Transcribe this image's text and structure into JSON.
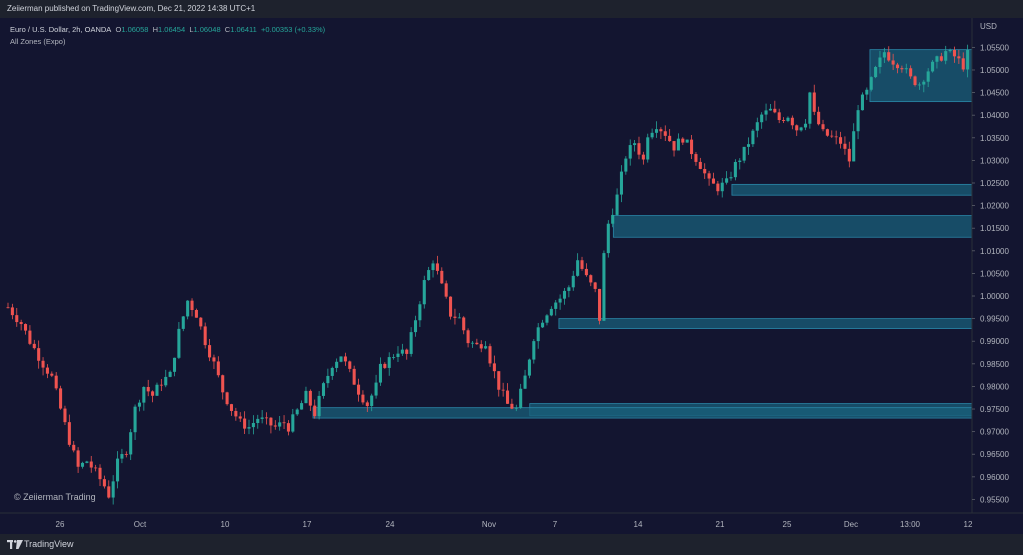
{
  "header": {
    "published": "Zeiierman published on TradingView.com, Dec 21, 2022 14:38 UTC+1"
  },
  "legend": {
    "symbol": "Euro / U.S. Dollar, 2h, OANDA",
    "o_label": "O",
    "o_value": "1.06058",
    "h_label": "H",
    "h_value": "1.06454",
    "l_label": "L",
    "l_value": "1.06048",
    "c_label": "C",
    "c_value": "1.06411",
    "change": "+0.00353 (+0.33%)",
    "indicator": "All Zones (Expo)"
  },
  "watermark": "© Zeiierman Trading",
  "footer": {
    "brand": "TradingView"
  },
  "colors": {
    "background": "#131530",
    "up": "#26a69a",
    "down": "#ef5350",
    "zone_fill": "#1a5f7a",
    "zone_border": "#2a87a8"
  },
  "chart_data": {
    "type": "candlestick",
    "currency": "USD",
    "ylim": [
      0.952,
      1.0615
    ],
    "y_ticks": [
      "1.05500",
      "1.05000",
      "1.04500",
      "1.04000",
      "1.03500",
      "1.03000",
      "1.02500",
      "1.02000",
      "1.01500",
      "1.01000",
      "1.00500",
      "1.00000",
      "0.99500",
      "0.99000",
      "0.98500",
      "0.98000",
      "0.97500",
      "0.97000",
      "0.96500",
      "0.96000",
      "0.95500"
    ],
    "x_ticks": [
      "26",
      "Oct",
      "10",
      "17",
      "24",
      "Nov",
      "7",
      "14",
      "21",
      "25",
      "Dec",
      "13:00",
      "12"
    ],
    "anchors": [
      [
        0,
        0.9975
      ],
      [
        3,
        0.994
      ],
      [
        5,
        0.99
      ],
      [
        8,
        0.985
      ],
      [
        10,
        0.982
      ],
      [
        12,
        0.975
      ],
      [
        14,
        0.968
      ],
      [
        16,
        0.962
      ],
      [
        18,
        0.9635
      ],
      [
        20,
        0.961
      ],
      [
        22,
        0.958
      ],
      [
        23,
        0.956
      ],
      [
        25,
        0.963
      ],
      [
        27,
        0.966
      ],
      [
        29,
        0.975
      ],
      [
        31,
        0.98
      ],
      [
        33,
        0.978
      ],
      [
        35,
        0.981
      ],
      [
        37,
        0.9825
      ],
      [
        39,
        0.992
      ],
      [
        41,
        0.999
      ],
      [
        43,
        0.996
      ],
      [
        45,
        0.99
      ],
      [
        47,
        0.985
      ],
      [
        49,
        0.979
      ],
      [
        51,
        0.975
      ],
      [
        53,
        0.972
      ],
      [
        55,
        0.971
      ],
      [
        57,
        0.973
      ],
      [
        59,
        0.972
      ],
      [
        61,
        0.971
      ],
      [
        63,
        0.972
      ],
      [
        64,
        0.971
      ],
      [
        66,
        0.9745
      ],
      [
        68,
        0.978
      ],
      [
        70,
        0.974
      ],
      [
        72,
        0.98
      ],
      [
        74,
        0.985
      ],
      [
        76,
        0.987
      ],
      [
        78,
        0.983
      ],
      [
        80,
        0.979
      ],
      [
        82,
        0.976
      ],
      [
        84,
        0.98
      ],
      [
        85,
        0.984
      ],
      [
        87,
        0.986
      ],
      [
        89,
        0.988
      ],
      [
        91,
        0.987
      ],
      [
        93,
        0.995
      ],
      [
        95,
        1.003
      ],
      [
        97,
        1.008
      ],
      [
        99,
        1.002
      ],
      [
        101,
        0.996
      ],
      [
        103,
        0.995
      ],
      [
        105,
        0.99
      ],
      [
        107,
        0.989
      ],
      [
        109,
        0.99
      ],
      [
        110,
        0.986
      ],
      [
        112,
        0.98
      ],
      [
        114,
        0.976
      ],
      [
        116,
        0.975
      ],
      [
        118,
        0.982
      ],
      [
        120,
        0.991
      ],
      [
        122,
        0.995
      ],
      [
        124,
        0.998
      ],
      [
        126,
        0.9995
      ],
      [
        128,
        1.002
      ],
      [
        130,
        1.008
      ],
      [
        132,
        1.004
      ],
      [
        134,
        1.001
      ],
      [
        135,
        0.995
      ],
      [
        136,
        1.009
      ],
      [
        137,
        1.016
      ],
      [
        139,
        1.022
      ],
      [
        141,
        1.031
      ],
      [
        143,
        1.034
      ],
      [
        145,
        1.03
      ],
      [
        146,
        1.036
      ],
      [
        148,
        1.038
      ],
      [
        150,
        1.036
      ],
      [
        152,
        1.033
      ],
      [
        154,
        1.035
      ],
      [
        156,
        1.032
      ],
      [
        158,
        1.029
      ],
      [
        160,
        1.025
      ],
      [
        162,
        1.024
      ],
      [
        164,
        1.025
      ],
      [
        166,
        1.029
      ],
      [
        168,
        1.032
      ],
      [
        170,
        1.036
      ],
      [
        172,
        1.04
      ],
      [
        174,
        1.041
      ],
      [
        176,
        1.039
      ],
      [
        178,
        1.04
      ],
      [
        180,
        1.037
      ],
      [
        182,
        1.039
      ],
      [
        183,
        1.045
      ],
      [
        184,
        1.04
      ],
      [
        186,
        1.036
      ],
      [
        188,
        1.035
      ],
      [
        190,
        1.034
      ],
      [
        191,
        1.032
      ],
      [
        192,
        1.03
      ],
      [
        194,
        1.042
      ],
      [
        196,
        1.045
      ],
      [
        198,
        1.05
      ],
      [
        200,
        1.054
      ],
      [
        202,
        1.052
      ],
      [
        204,
        1.051
      ],
      [
        206,
        1.048
      ],
      [
        208,
        1.047
      ],
      [
        210,
        1.05
      ],
      [
        212,
        1.052
      ],
      [
        214,
        1.054
      ],
      [
        216,
        1.053
      ],
      [
        218,
        1.051
      ],
      [
        219,
        1.0535
      ]
    ],
    "zones": [
      {
        "top": 1.0545,
        "bottom": 1.043,
        "start": 0.895
      },
      {
        "top": 1.0247,
        "bottom": 1.0223,
        "start": 0.753
      },
      {
        "top": 1.0178,
        "bottom": 1.013,
        "start": 0.631
      },
      {
        "top": 0.995,
        "bottom": 0.9928,
        "start": 0.575
      },
      {
        "top": 0.9762,
        "bottom": 0.9735,
        "start": 0.545
      },
      {
        "top": 0.9753,
        "bottom": 0.973,
        "start": 0.322
      }
    ]
  }
}
